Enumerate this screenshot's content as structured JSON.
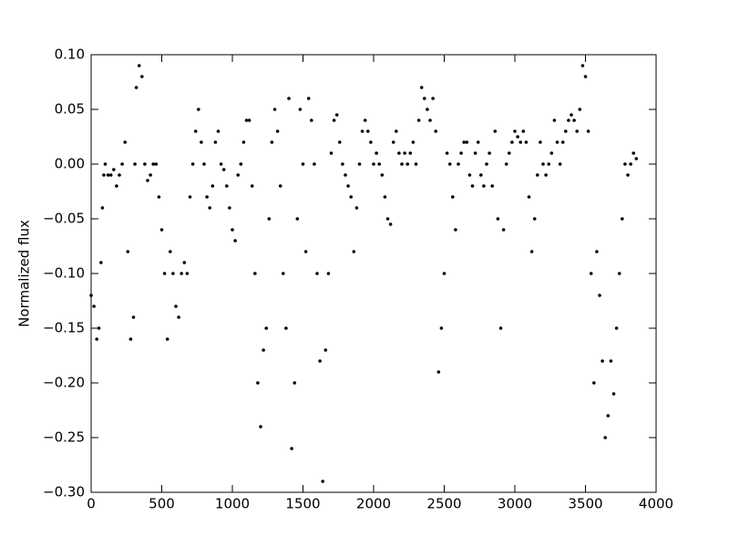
{
  "chart_data": {
    "type": "scatter",
    "ylabel": "Normalized flux",
    "color": "#000000",
    "x": [
      0,
      20,
      40,
      55,
      70,
      80,
      90,
      100,
      120,
      140,
      160,
      180,
      200,
      220,
      240,
      260,
      280,
      300,
      310,
      320,
      340,
      360,
      380,
      400,
      420,
      440,
      460,
      480,
      500,
      520,
      540,
      560,
      580,
      600,
      620,
      640,
      660,
      680,
      700,
      720,
      740,
      760,
      780,
      800,
      820,
      840,
      860,
      880,
      900,
      920,
      940,
      960,
      980,
      1000,
      1020,
      1040,
      1060,
      1080,
      1100,
      1120,
      1140,
      1160,
      1180,
      1200,
      1220,
      1240,
      1260,
      1280,
      1300,
      1320,
      1340,
      1360,
      1380,
      1400,
      1420,
      1440,
      1460,
      1480,
      1500,
      1520,
      1540,
      1560,
      1580,
      1600,
      1620,
      1640,
      1660,
      1680,
      1700,
      1720,
      1740,
      1760,
      1780,
      1800,
      1820,
      1840,
      1860,
      1880,
      1900,
      1920,
      1940,
      1960,
      1980,
      2000,
      2020,
      2040,
      2060,
      2080,
      2100,
      2120,
      2140,
      2160,
      2180,
      2200,
      2220,
      2240,
      2260,
      2280,
      2300,
      2320,
      2340,
      2360,
      2380,
      2400,
      2420,
      2440,
      2460,
      2480,
      2500,
      2520,
      2540,
      2560,
      2580,
      2600,
      2620,
      2640,
      2660,
      2680,
      2700,
      2720,
      2740,
      2760,
      2780,
      2800,
      2820,
      2840,
      2860,
      2880,
      2900,
      2920,
      2940,
      2960,
      2980,
      3000,
      3020,
      3040,
      3060,
      3080,
      3100,
      3120,
      3140,
      3160,
      3180,
      3200,
      3220,
      3240,
      3260,
      3280,
      3300,
      3320,
      3340,
      3360,
      3380,
      3400,
      3420,
      3440,
      3460,
      3480,
      3500,
      3520,
      3540,
      3560,
      3580,
      3600,
      3620,
      3640,
      3660,
      3680,
      3700,
      3720,
      3740,
      3760,
      3780,
      3800,
      3820,
      3840,
      3860
    ],
    "values": [
      -0.12,
      -0.13,
      -0.16,
      -0.15,
      -0.09,
      -0.04,
      -0.01,
      0.0,
      -0.01,
      -0.01,
      -0.005,
      -0.02,
      -0.01,
      0.0,
      0.02,
      -0.08,
      -0.16,
      -0.14,
      0.0,
      0.07,
      0.09,
      0.08,
      0.0,
      -0.015,
      -0.01,
      0.0,
      0.0,
      -0.03,
      -0.06,
      -0.1,
      -0.16,
      -0.08,
      -0.1,
      -0.13,
      -0.14,
      -0.1,
      -0.09,
      -0.1,
      -0.03,
      0.0,
      0.03,
      0.05,
      0.02,
      0.0,
      -0.03,
      -0.04,
      -0.02,
      0.02,
      0.03,
      0.0,
      -0.005,
      -0.02,
      -0.04,
      -0.06,
      -0.07,
      -0.01,
      0.0,
      0.02,
      0.04,
      0.04,
      -0.02,
      -0.1,
      -0.2,
      -0.24,
      -0.17,
      -0.15,
      -0.05,
      0.02,
      0.05,
      0.03,
      -0.02,
      -0.1,
      -0.15,
      0.06,
      -0.26,
      -0.2,
      -0.05,
      0.05,
      0.0,
      -0.08,
      0.06,
      0.04,
      0.0,
      -0.1,
      -0.18,
      -0.29,
      -0.17,
      -0.1,
      0.01,
      0.04,
      0.045,
      0.02,
      0.0,
      -0.01,
      -0.02,
      -0.03,
      -0.08,
      -0.04,
      0.0,
      0.03,
      0.04,
      0.03,
      0.02,
      0.0,
      0.01,
      0.0,
      -0.01,
      -0.03,
      -0.05,
      -0.055,
      0.02,
      0.03,
      0.01,
      0.0,
      0.01,
      0.0,
      0.01,
      0.02,
      0.0,
      0.04,
      0.07,
      0.06,
      0.05,
      0.04,
      0.06,
      0.03,
      -0.19,
      -0.15,
      -0.1,
      0.01,
      0.0,
      -0.03,
      -0.06,
      0.0,
      0.01,
      0.02,
      0.02,
      -0.01,
      -0.02,
      0.01,
      0.02,
      -0.01,
      -0.02,
      0.0,
      0.01,
      -0.02,
      0.03,
      -0.05,
      -0.15,
      -0.06,
      0.0,
      0.01,
      0.02,
      0.03,
      0.025,
      0.02,
      0.03,
      0.02,
      -0.03,
      -0.08,
      -0.05,
      -0.01,
      0.02,
      0.0,
      -0.01,
      0.0,
      0.01,
      0.04,
      0.02,
      0.0,
      0.02,
      0.03,
      0.04,
      0.045,
      0.04,
      0.03,
      0.05,
      0.09,
      0.08,
      0.03,
      -0.1,
      -0.2,
      -0.08,
      -0.12,
      -0.18,
      -0.25,
      -0.23,
      -0.18,
      -0.21,
      -0.15,
      -0.1,
      -0.05,
      0.0,
      -0.01,
      0.0,
      0.01,
      0.005
    ],
    "xlim": [
      0,
      4000
    ],
    "xticks": [
      0,
      500,
      1000,
      1500,
      2000,
      2500,
      3000,
      3500,
      4000
    ],
    "ylim": [
      -0.3,
      0.1
    ],
    "yticks": [
      {
        "value": -0.3,
        "label": "−0.30"
      },
      {
        "value": -0.25,
        "label": "−0.25"
      },
      {
        "value": -0.2,
        "label": "−0.20"
      },
      {
        "value": -0.15,
        "label": "−0.15"
      },
      {
        "value": -0.1,
        "label": "−0.10"
      },
      {
        "value": -0.05,
        "label": "−0.05"
      },
      {
        "value": 0,
        "label": "0.00"
      },
      {
        "value": 0.05,
        "label": "0.05"
      },
      {
        "value": 0.1,
        "label": "0.10"
      }
    ]
  }
}
